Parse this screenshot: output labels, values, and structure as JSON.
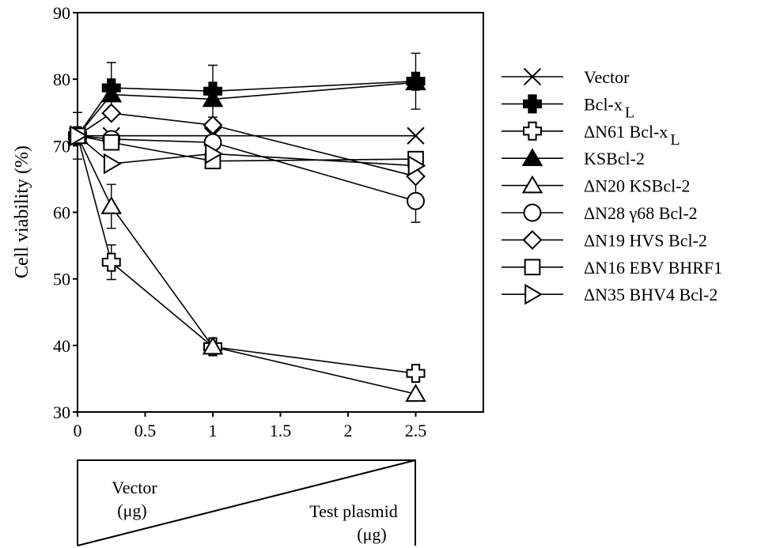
{
  "chart_data": {
    "type": "line",
    "ylabel": "Cell viability (%)",
    "xlabel": "",
    "x_ticks": [
      "0",
      "0.5",
      "1",
      "1.5",
      "2",
      "2.5"
    ],
    "y_ticks": [
      "30",
      "40",
      "50",
      "60",
      "70",
      "80",
      "90"
    ],
    "xlim": [
      0,
      3
    ],
    "ylim": [
      30,
      90
    ],
    "legend_position": "right",
    "x": [
      0,
      0.25,
      1,
      2.5
    ],
    "series": [
      {
        "name": "Vector",
        "marker": "x",
        "values": [
          71.5,
          71.5,
          71.5,
          71.5
        ],
        "err": [
          0,
          0,
          0,
          0
        ]
      },
      {
        "name": "Bcl-xL",
        "marker": "plus-filled",
        "values": [
          71.5,
          78.7,
          78.2,
          79.7
        ],
        "err": [
          3.5,
          3.8,
          3.9,
          4.2
        ]
      },
      {
        "name": "ΔN61 Bcl-xL",
        "marker": "plus-open",
        "values": [
          71.5,
          52.5,
          39.8,
          35.8
        ],
        "err": [
          0,
          2.6,
          0,
          0
        ]
      },
      {
        "name": "KSBcl-2",
        "marker": "triangle-up-filled",
        "values": [
          71.5,
          77.7,
          77.0,
          79.5
        ],
        "err": [
          0,
          0,
          0,
          0
        ]
      },
      {
        "name": "ΔN20 KSBcl-2",
        "marker": "triangle-up-open",
        "values": [
          71.5,
          60.9,
          39.8,
          32.7
        ],
        "err": [
          0,
          3.3,
          0,
          0
        ]
      },
      {
        "name": "ΔN28 γ68 Bcl-2",
        "marker": "circle-open",
        "values": [
          71.5,
          71.0,
          70.5,
          61.7
        ],
        "err": [
          0,
          0,
          0,
          3.2
        ]
      },
      {
        "name": "ΔN19 HVS Bcl-2",
        "marker": "diamond-open",
        "values": [
          71.5,
          74.9,
          73.1,
          65.4
        ],
        "err": [
          0,
          0,
          0,
          0
        ]
      },
      {
        "name": "ΔN16 EBV BHRF1",
        "marker": "square-open",
        "values": [
          71.5,
          70.5,
          67.7,
          68.0
        ],
        "err": [
          0,
          0,
          0,
          0
        ]
      },
      {
        "name": "ΔN35 BHV4 Bcl-2",
        "marker": "triangle-right-open",
        "values": [
          71.5,
          67.3,
          68.8,
          67.0
        ],
        "err": [
          0,
          0,
          0,
          0
        ]
      }
    ],
    "legend_labels": [
      {
        "base": "Vector",
        "sub": ""
      },
      {
        "base": "Bcl-x",
        "sub": "L"
      },
      {
        "base": "ΔN61 Bcl-x",
        "sub": "L"
      },
      {
        "base": "KSBcl-2",
        "sub": ""
      },
      {
        "base": "ΔN20 KSBcl-2",
        "sub": ""
      },
      {
        "base": "ΔN28 γ68 Bcl-2",
        "sub": ""
      },
      {
        "base": "ΔN19  HVS Bcl-2",
        "sub": ""
      },
      {
        "base": "ΔN16 EBV BHRF1",
        "sub": ""
      },
      {
        "base": "ΔN35 BHV4 Bcl-2",
        "sub": ""
      }
    ],
    "annotation": {
      "vector_label": "Vector",
      "vector_unit": "(μg)",
      "test_label": "Test plasmid",
      "test_unit": "(μg)"
    }
  }
}
